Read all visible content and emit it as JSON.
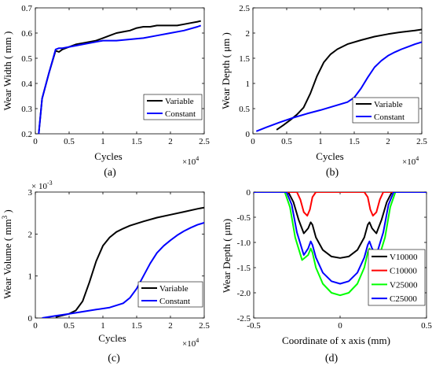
{
  "colors": {
    "black": "#000000",
    "blue": "#0000ff",
    "red": "#ff0000",
    "green": "#00ff00"
  },
  "chart_data": [
    {
      "panel": "(a)",
      "type": "line",
      "xlabel": "Cycles",
      "ylabel": "Wear Width ( mm )",
      "x_multiplier": "×10",
      "x_multiplier_exp": "4",
      "xlim": [
        0,
        2.5
      ],
      "ylim": [
        0.2,
        0.7
      ],
      "xticks": [
        0,
        0.5,
        1,
        1.5,
        2,
        2.5
      ],
      "xtick_labels": [
        "0",
        "0.5",
        "1",
        "1.5",
        "2",
        "2.5"
      ],
      "yticks": [
        0.2,
        0.3,
        0.4,
        0.5,
        0.6,
        0.7
      ],
      "ytick_labels": [
        "0.2",
        "0.3",
        "0.4",
        "0.5",
        "0.6",
        "0.7"
      ],
      "legend_position": "bottom-right",
      "series": [
        {
          "name": "Variable",
          "color": "#000000",
          "x": [
            0.05,
            0.1,
            0.2,
            0.3,
            0.35,
            0.4,
            0.5,
            0.6,
            0.7,
            0.8,
            0.9,
            1.0,
            1.1,
            1.2,
            1.3,
            1.4,
            1.5,
            1.6,
            1.7,
            1.8,
            1.9,
            2.0,
            2.1,
            2.2,
            2.3,
            2.4,
            2.45
          ],
          "y": [
            0.2,
            0.34,
            0.44,
            0.53,
            0.525,
            0.535,
            0.545,
            0.555,
            0.56,
            0.565,
            0.57,
            0.58,
            0.59,
            0.6,
            0.605,
            0.61,
            0.62,
            0.625,
            0.625,
            0.63,
            0.63,
            0.63,
            0.63,
            0.635,
            0.64,
            0.645,
            0.648
          ]
        },
        {
          "name": "Constant",
          "color": "#0000ff",
          "x": [
            0.05,
            0.1,
            0.2,
            0.3,
            0.35,
            0.4,
            0.5,
            0.6,
            0.7,
            0.8,
            0.9,
            1.0,
            1.2,
            1.4,
            1.6,
            1.8,
            2.0,
            2.2,
            2.4,
            2.45
          ],
          "y": [
            0.2,
            0.34,
            0.44,
            0.535,
            0.54,
            0.54,
            0.545,
            0.55,
            0.555,
            0.56,
            0.565,
            0.57,
            0.57,
            0.575,
            0.58,
            0.59,
            0.6,
            0.61,
            0.625,
            0.63
          ]
        }
      ]
    },
    {
      "panel": "(b)",
      "type": "line",
      "xlabel": "Cycles",
      "ylabel": "Wear Depth ( μm )",
      "x_multiplier": "×10",
      "x_multiplier_exp": "4",
      "xlim": [
        0,
        2.5
      ],
      "ylim": [
        0,
        2.5
      ],
      "xticks": [
        0,
        0.5,
        1,
        1.5,
        2,
        2.5
      ],
      "xtick_labels": [
        "0",
        "0.5",
        "1",
        "1.5",
        "2",
        "2.5"
      ],
      "yticks": [
        0,
        0.5,
        1,
        1.5,
        2,
        2.5
      ],
      "ytick_labels": [
        "0",
        "0.5",
        "1",
        "1.5",
        "2",
        "2.5"
      ],
      "legend_position": "bottom-right",
      "series": [
        {
          "name": "Variable",
          "color": "#000000",
          "x": [
            0.35,
            0.45,
            0.55,
            0.65,
            0.75,
            0.85,
            0.95,
            1.05,
            1.15,
            1.25,
            1.4,
            1.6,
            1.8,
            2.0,
            2.2,
            2.4,
            2.5
          ],
          "y": [
            0.08,
            0.17,
            0.27,
            0.38,
            0.52,
            0.8,
            1.15,
            1.42,
            1.58,
            1.68,
            1.78,
            1.86,
            1.93,
            1.98,
            2.02,
            2.05,
            2.07
          ]
        },
        {
          "name": "Constant",
          "color": "#0000ff",
          "x": [
            0.05,
            0.2,
            0.4,
            0.6,
            0.8,
            1.0,
            1.2,
            1.4,
            1.5,
            1.6,
            1.7,
            1.8,
            1.9,
            2.0,
            2.1,
            2.2,
            2.3,
            2.4,
            2.5
          ],
          "y": [
            0.05,
            0.13,
            0.23,
            0.32,
            0.4,
            0.47,
            0.55,
            0.63,
            0.72,
            0.9,
            1.12,
            1.32,
            1.45,
            1.55,
            1.62,
            1.68,
            1.73,
            1.78,
            1.82
          ]
        }
      ]
    },
    {
      "panel": "(c)",
      "type": "line",
      "xlabel": "Cycles",
      "ylabel": "Wear Volume ( mm3 )",
      "ylabel_main": "Wear Volume ( mm",
      "ylabel_sup": "3",
      "ylabel_end": " )",
      "y_multiplier": "× 10",
      "y_multiplier_exp": "-3",
      "x_multiplier": "×10",
      "x_multiplier_exp": "4",
      "xlim": [
        0,
        2.5
      ],
      "ylim": [
        0,
        3
      ],
      "xticks": [
        0,
        0.5,
        1,
        1.5,
        2,
        2.5
      ],
      "xtick_labels": [
        "0",
        "0.5",
        "1",
        "1.5",
        "2",
        "2.5"
      ],
      "yticks": [
        0,
        1,
        2,
        3
      ],
      "ytick_labels": [
        "0",
        "1",
        "2",
        "3"
      ],
      "legend_position": "bottom-right",
      "series": [
        {
          "name": "Variable",
          "color": "#000000",
          "x": [
            0.3,
            0.4,
            0.5,
            0.6,
            0.7,
            0.8,
            0.9,
            1.0,
            1.1,
            1.2,
            1.3,
            1.4,
            1.6,
            1.8,
            2.0,
            2.2,
            2.4,
            2.5
          ],
          "y": [
            0.02,
            0.06,
            0.1,
            0.18,
            0.4,
            0.85,
            1.35,
            1.72,
            1.92,
            2.05,
            2.13,
            2.2,
            2.3,
            2.39,
            2.46,
            2.53,
            2.6,
            2.63
          ]
        },
        {
          "name": "Constant",
          "color": "#0000ff",
          "x": [
            0.1,
            0.3,
            0.5,
            0.7,
            0.9,
            1.1,
            1.3,
            1.4,
            1.5,
            1.6,
            1.7,
            1.8,
            1.9,
            2.0,
            2.1,
            2.2,
            2.3,
            2.4,
            2.5
          ],
          "y": [
            0.0,
            0.05,
            0.1,
            0.15,
            0.2,
            0.25,
            0.35,
            0.48,
            0.7,
            1.0,
            1.3,
            1.55,
            1.72,
            1.85,
            1.97,
            2.07,
            2.15,
            2.22,
            2.27
          ]
        }
      ]
    },
    {
      "panel": "(d)",
      "type": "line",
      "xlabel": "Coordinate of x axis (mm)",
      "ylabel": "Wear Depth ( μm)",
      "xlim": [
        -0.5,
        0.5
      ],
      "ylim": [
        -2.5,
        0
      ],
      "xticks": [
        -0.5,
        0,
        0.5
      ],
      "xtick_labels": [
        "-0.5",
        "0",
        "0.5"
      ],
      "yticks": [
        -2.5,
        -2,
        -1.5,
        -1,
        -0.5,
        0
      ],
      "ytick_labels": [
        "-2.5",
        "-2.0",
        "-1.5",
        "-1.0",
        "-0.5",
        "0"
      ],
      "legend_position": "bottom-right",
      "series": [
        {
          "name": "V10000",
          "color": "#000000",
          "x": [
            -0.5,
            -0.3,
            -0.27,
            -0.24,
            -0.21,
            -0.185,
            -0.17,
            -0.16,
            -0.14,
            -0.1,
            -0.05,
            0,
            0.05,
            0.1,
            0.14,
            0.16,
            0.17,
            0.185,
            0.21,
            0.24,
            0.27,
            0.3,
            0.5
          ],
          "y": [
            0,
            0,
            -0.2,
            -0.55,
            -0.82,
            -0.72,
            -0.6,
            -0.65,
            -0.9,
            -1.15,
            -1.28,
            -1.31,
            -1.28,
            -1.15,
            -0.9,
            -0.65,
            -0.6,
            -0.72,
            -0.82,
            -0.55,
            -0.2,
            0,
            0
          ]
        },
        {
          "name": "C10000",
          "color": "#ff0000",
          "x": [
            -0.5,
            -0.25,
            -0.23,
            -0.21,
            -0.19,
            -0.175,
            -0.16,
            -0.14,
            0.14,
            0.16,
            0.175,
            0.19,
            0.21,
            0.23,
            0.25,
            0.5
          ],
          "y": [
            0,
            0,
            -0.15,
            -0.4,
            -0.47,
            -0.35,
            -0.1,
            0,
            0,
            -0.1,
            -0.35,
            -0.47,
            -0.4,
            -0.15,
            0,
            0
          ]
        },
        {
          "name": "V25000",
          "color": "#00ff00",
          "x": [
            -0.5,
            -0.32,
            -0.29,
            -0.26,
            -0.22,
            -0.185,
            -0.17,
            -0.16,
            -0.14,
            -0.1,
            -0.05,
            0,
            0.05,
            0.1,
            0.14,
            0.16,
            0.17,
            0.185,
            0.22,
            0.26,
            0.29,
            0.32,
            0.5
          ],
          "y": [
            0,
            0,
            -0.3,
            -0.9,
            -1.35,
            -1.25,
            -1.12,
            -1.2,
            -1.5,
            -1.82,
            -2.0,
            -2.05,
            -2.0,
            -1.82,
            -1.5,
            -1.2,
            -1.12,
            -1.25,
            -1.35,
            -0.9,
            -0.3,
            0,
            0
          ]
        },
        {
          "name": "C25000",
          "color": "#0000ff",
          "x": [
            -0.5,
            -0.31,
            -0.28,
            -0.25,
            -0.21,
            -0.185,
            -0.17,
            -0.16,
            -0.14,
            -0.1,
            -0.05,
            0,
            0.05,
            0.1,
            0.14,
            0.16,
            0.17,
            0.185,
            0.21,
            0.25,
            0.28,
            0.31,
            0.5
          ],
          "y": [
            0,
            0,
            -0.25,
            -0.8,
            -1.25,
            -1.12,
            -0.98,
            -1.05,
            -1.3,
            -1.6,
            -1.77,
            -1.82,
            -1.77,
            -1.6,
            -1.3,
            -1.05,
            -0.98,
            -1.12,
            -1.25,
            -0.8,
            -0.25,
            0,
            0
          ]
        }
      ]
    }
  ]
}
